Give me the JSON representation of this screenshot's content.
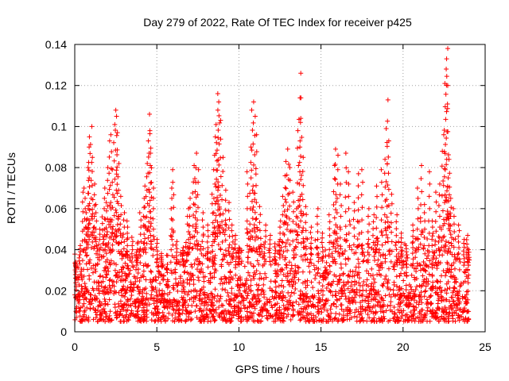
{
  "chart_data": {
    "type": "scatter",
    "title": "Day 279 of 2022, Rate Of TEC Index for receiver p425",
    "xlabel": "GPS time / hours",
    "ylabel": "ROTI / TECUs",
    "xlim": [
      0,
      25
    ],
    "ylim": [
      0,
      0.14
    ],
    "x_ticks": [
      "0",
      "5",
      "10",
      "15",
      "20",
      "25"
    ],
    "y_ticks": [
      "0",
      "0.02",
      "0.04",
      "0.06",
      "0.08",
      "0.1",
      "0.12",
      "0.14"
    ],
    "x_tick_values": [
      0,
      5,
      10,
      15,
      20,
      25
    ],
    "y_tick_values": [
      0,
      0.02,
      0.04,
      0.06,
      0.08,
      0.1,
      0.12,
      0.14
    ],
    "grid": true,
    "marker": "+",
    "color": "#ff0000",
    "data_range_x": [
      0,
      24
    ],
    "baseline_band": [
      0.005,
      0.03
    ],
    "series": [
      {
        "points": [
          [
            0.05,
            0.034
          ],
          [
            0.3,
            0.042
          ],
          [
            0.5,
            0.068
          ],
          [
            0.6,
            0.07
          ],
          [
            0.7,
            0.058
          ],
          [
            0.8,
            0.08
          ],
          [
            0.85,
            0.09
          ],
          [
            0.9,
            0.095
          ],
          [
            1.0,
            0.1
          ],
          [
            1.1,
            0.085
          ],
          [
            1.2,
            0.072
          ],
          [
            1.3,
            0.062
          ],
          [
            1.5,
            0.05
          ],
          [
            1.7,
            0.056
          ],
          [
            1.8,
            0.07
          ],
          [
            1.9,
            0.063
          ],
          [
            2.0,
            0.08
          ],
          [
            2.1,
            0.093
          ],
          [
            2.2,
            0.096
          ],
          [
            2.3,
            0.079
          ],
          [
            2.4,
            0.101
          ],
          [
            2.5,
            0.108
          ],
          [
            2.55,
            0.105
          ],
          [
            2.6,
            0.097
          ],
          [
            2.65,
            0.082
          ],
          [
            2.8,
            0.066
          ],
          [
            3.0,
            0.058
          ],
          [
            3.2,
            0.054
          ],
          [
            3.5,
            0.046
          ],
          [
            3.8,
            0.04
          ],
          [
            4.0,
            0.058
          ],
          [
            4.2,
            0.065
          ],
          [
            4.3,
            0.071
          ],
          [
            4.4,
            0.082
          ],
          [
            4.5,
            0.093
          ],
          [
            4.55,
            0.106
          ],
          [
            4.6,
            0.098
          ],
          [
            4.65,
            0.087
          ],
          [
            4.8,
            0.07
          ],
          [
            5.0,
            0.045
          ],
          [
            5.3,
            0.037
          ],
          [
            5.6,
            0.031
          ],
          [
            5.9,
            0.07
          ],
          [
            6.0,
            0.079
          ],
          [
            6.2,
            0.044
          ],
          [
            6.6,
            0.041
          ],
          [
            6.9,
            0.06
          ],
          [
            7.0,
            0.065
          ],
          [
            7.2,
            0.073
          ],
          [
            7.3,
            0.081
          ],
          [
            7.4,
            0.087
          ],
          [
            7.5,
            0.079
          ],
          [
            7.8,
            0.058
          ],
          [
            8.1,
            0.052
          ],
          [
            8.4,
            0.067
          ],
          [
            8.5,
            0.086
          ],
          [
            8.6,
            0.095
          ],
          [
            8.65,
            0.101
          ],
          [
            8.7,
            0.108
          ],
          [
            8.75,
            0.116
          ],
          [
            8.8,
            0.112
          ],
          [
            8.9,
            0.103
          ],
          [
            9.0,
            0.085
          ],
          [
            9.2,
            0.069
          ],
          [
            9.4,
            0.063
          ],
          [
            9.6,
            0.052
          ],
          [
            9.8,
            0.047
          ],
          [
            10.0,
            0.041
          ],
          [
            10.5,
            0.078
          ],
          [
            10.7,
            0.09
          ],
          [
            10.8,
            0.108
          ],
          [
            10.9,
            0.112
          ],
          [
            11.0,
            0.105
          ],
          [
            11.05,
            0.096
          ],
          [
            11.3,
            0.061
          ],
          [
            11.6,
            0.052
          ],
          [
            11.9,
            0.047
          ],
          [
            12.2,
            0.043
          ],
          [
            12.5,
            0.054
          ],
          [
            12.7,
            0.066
          ],
          [
            12.8,
            0.076
          ],
          [
            12.9,
            0.083
          ],
          [
            13.0,
            0.089
          ],
          [
            13.1,
            0.08
          ],
          [
            13.3,
            0.068
          ],
          [
            13.5,
            0.06
          ],
          [
            13.6,
            0.098
          ],
          [
            13.7,
            0.114
          ],
          [
            13.75,
            0.126
          ],
          [
            13.8,
            0.104
          ],
          [
            13.9,
            0.085
          ],
          [
            14.1,
            0.061
          ],
          [
            14.4,
            0.051
          ],
          [
            14.8,
            0.06
          ],
          [
            15.1,
            0.048
          ],
          [
            15.5,
            0.057
          ],
          [
            15.8,
            0.081
          ],
          [
            15.9,
            0.089
          ],
          [
            16.0,
            0.086
          ],
          [
            16.2,
            0.072
          ],
          [
            16.5,
            0.087
          ],
          [
            16.7,
            0.078
          ],
          [
            17.0,
            0.063
          ],
          [
            17.3,
            0.077
          ],
          [
            17.5,
            0.079
          ],
          [
            17.9,
            0.06
          ],
          [
            18.2,
            0.057
          ],
          [
            18.4,
            0.071
          ],
          [
            18.7,
            0.079
          ],
          [
            18.9,
            0.084
          ],
          [
            19.0,
            0.099
          ],
          [
            19.05,
            0.113
          ],
          [
            19.1,
            0.093
          ],
          [
            19.3,
            0.067
          ],
          [
            19.6,
            0.057
          ],
          [
            19.9,
            0.048
          ],
          [
            20.2,
            0.042
          ],
          [
            20.6,
            0.052
          ],
          [
            20.9,
            0.07
          ],
          [
            21.1,
            0.081
          ],
          [
            21.3,
            0.062
          ],
          [
            21.6,
            0.078
          ],
          [
            21.8,
            0.054
          ],
          [
            22.0,
            0.068
          ],
          [
            22.2,
            0.072
          ],
          [
            22.4,
            0.088
          ],
          [
            22.5,
            0.096
          ],
          [
            22.55,
            0.121
          ],
          [
            22.6,
            0.128
          ],
          [
            22.65,
            0.133
          ],
          [
            22.7,
            0.138
          ],
          [
            22.75,
            0.12
          ],
          [
            22.8,
            0.084
          ],
          [
            22.9,
            0.065
          ],
          [
            23.1,
            0.06
          ],
          [
            23.4,
            0.052
          ],
          [
            23.7,
            0.045
          ],
          [
            23.9,
            0.047
          ],
          [
            24.0,
            0.04
          ]
        ]
      }
    ]
  }
}
